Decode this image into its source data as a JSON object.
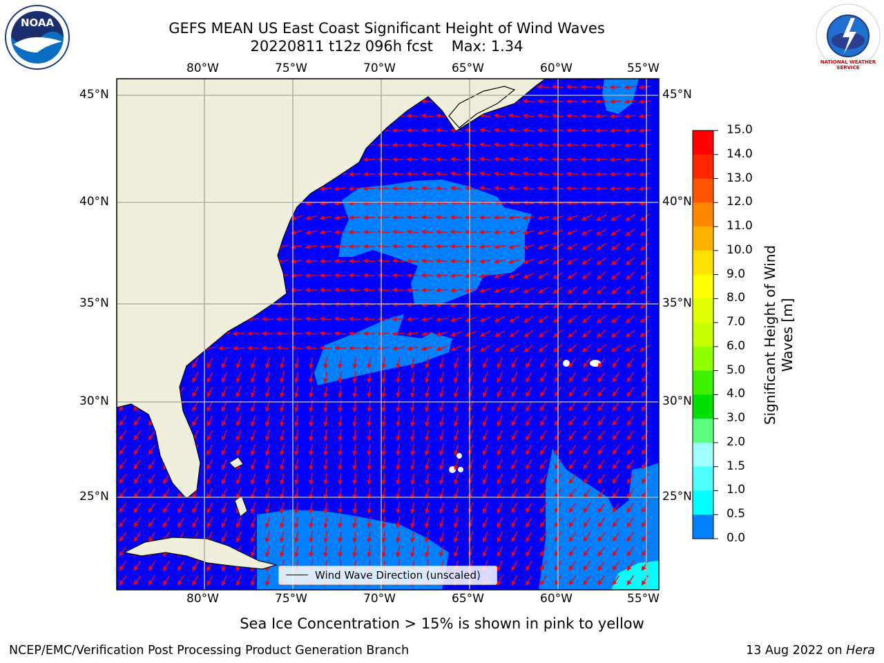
{
  "title_line1": "GEFS MEAN US East Coast Significant Height of Wind Waves",
  "title_line2": "20220811 t12z 096h fcst    Max: 1.34",
  "lon_labels": [
    "80°W",
    "75°W",
    "70°W",
    "65°W",
    "60°W",
    "55°W"
  ],
  "lat_labels": [
    "45°N",
    "40°N",
    "35°N",
    "30°N",
    "25°N"
  ],
  "colorbar": {
    "label": "Significant Height of Wind Waves [m]",
    "ticks": [
      "15.0",
      "14.0",
      "13.0",
      "12.0",
      "11.0",
      "10.0",
      "9.0",
      "8.0",
      "7.0",
      "6.0",
      "5.0",
      "4.0",
      "3.0",
      "2.0",
      "1.5",
      "1.0",
      "0.5",
      "0.0"
    ],
    "colors": [
      "#ff0000",
      "#ff2600",
      "#ff5500",
      "#ff8800",
      "#ffb300",
      "#ffe000",
      "#ffff00",
      "#e0ff00",
      "#c8ff00",
      "#90ff00",
      "#3cf000",
      "#00e000",
      "#5aff80",
      "#a0ffff",
      "#50ffff",
      "#00ffff",
      "#0080ff",
      "#0000ff"
    ]
  },
  "legend": {
    "label": "Wind Wave Direction (unscaled)"
  },
  "map_colors": {
    "ocean": "#0000ff",
    "low_wave": "#0080ff",
    "high_wave": "#00ffff",
    "land": "#efefdc",
    "arrow": "#ff0000",
    "grid": "#b0b0b0"
  },
  "subtitle": "Sea Ice Concentration > 15% is shown in pink to yellow",
  "footer_left": "NCEP/EMC/Verification Post Processing Product Generation Branch",
  "footer_date": "13 Aug 2022 on",
  "footer_host": "Hera",
  "logos": {
    "noaa": "NOAA",
    "nws": "NATIONAL WEATHER SERVICE"
  }
}
